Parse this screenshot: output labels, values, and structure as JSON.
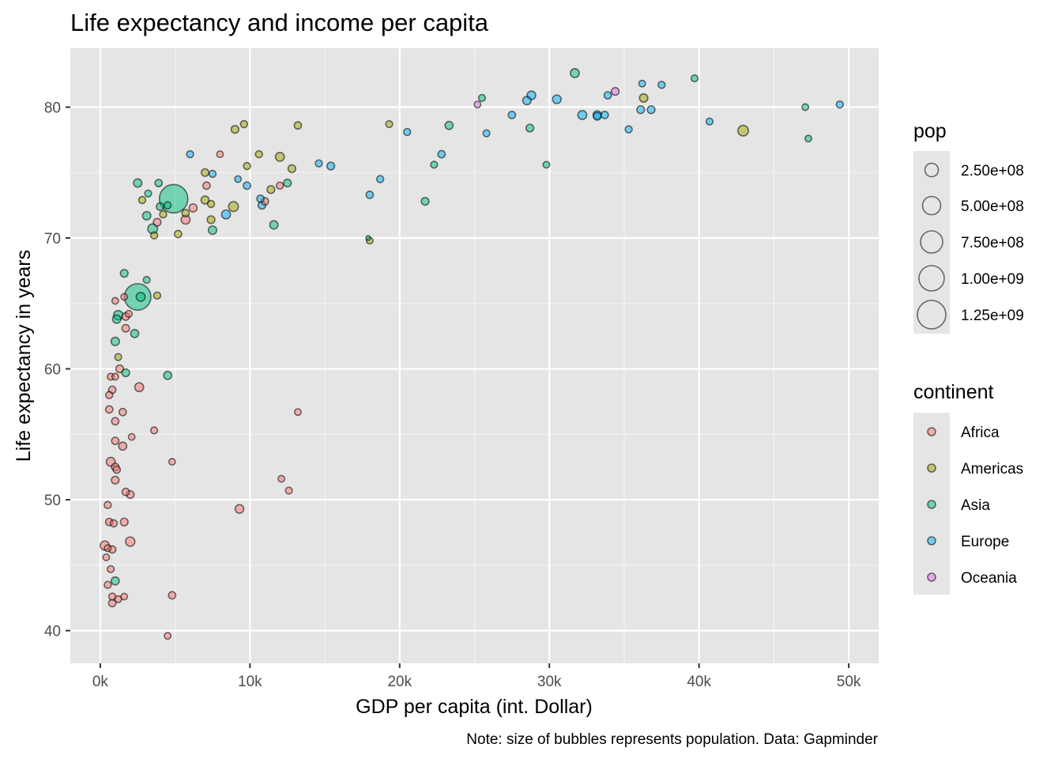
{
  "chart_data": {
    "type": "scatter",
    "title": "Life expectancy and income per capita",
    "xlabel": "GDP per capita (int. Dollar)",
    "ylabel": "Life expectancy in years",
    "caption": "Note: size of bubbles represents population. Data: Gapminder",
    "xlim": [
      -2000,
      52000
    ],
    "ylim": [
      37.5,
      84.5
    ],
    "x_ticks": [
      0,
      10000,
      20000,
      30000,
      40000,
      50000
    ],
    "x_tick_labels": [
      "0k",
      "10k",
      "20k",
      "30k",
      "40k",
      "50k"
    ],
    "y_ticks": [
      40,
      50,
      60,
      70,
      80
    ],
    "y_tick_labels": [
      "40",
      "50",
      "60",
      "70",
      "80"
    ],
    "grid": true,
    "legend_position": "right",
    "size_legend": {
      "title": "pop",
      "values": [
        250000000,
        500000000,
        750000000,
        1000000000,
        1250000000
      ],
      "labels": [
        "2.50e+08",
        "5.00e+08",
        "7.50e+08",
        "1.00e+09",
        "1.25e+09"
      ]
    },
    "color_legend": {
      "title": "continent",
      "entries": [
        {
          "name": "Africa",
          "color": "#F8766D"
        },
        {
          "name": "Americas",
          "color": "#A3A500"
        },
        {
          "name": "Asia",
          "color": "#00BF7D"
        },
        {
          "name": "Europe",
          "color": "#00B0F6"
        },
        {
          "name": "Oceania",
          "color": "#E76BF3"
        }
      ]
    },
    "series": [
      {
        "name": "Africa",
        "points": [
          [
            2600,
            58.6,
            40
          ],
          [
            4800,
            52.9,
            8
          ],
          [
            12100,
            51.6,
            8
          ],
          [
            12600,
            50.7,
            10
          ],
          [
            13200,
            56.7,
            8
          ],
          [
            9300,
            49.3,
            35
          ],
          [
            4800,
            42.7,
            15
          ],
          [
            4500,
            39.6,
            8
          ],
          [
            2000,
            46.8,
            50
          ],
          [
            300,
            46.5,
            45
          ],
          [
            800,
            46.2,
            15
          ],
          [
            500,
            46.3,
            10
          ],
          [
            400,
            45.6,
            8
          ],
          [
            700,
            44.7,
            10
          ],
          [
            500,
            43.5,
            12
          ],
          [
            800,
            42.6,
            12
          ],
          [
            1200,
            42.4,
            10
          ],
          [
            1600,
            42.6,
            8
          ],
          [
            800,
            42.1,
            15
          ],
          [
            600,
            48.3,
            15
          ],
          [
            900,
            48.2,
            12
          ],
          [
            1600,
            48.3,
            20
          ],
          [
            500,
            49.6,
            12
          ],
          [
            1700,
            50.6,
            15
          ],
          [
            2000,
            50.4,
            20
          ],
          [
            1000,
            51.5,
            20
          ],
          [
            1100,
            52.3,
            15
          ],
          [
            1000,
            52.5,
            18
          ],
          [
            700,
            52.9,
            40
          ],
          [
            1500,
            54.1,
            25
          ],
          [
            1000,
            54.5,
            15
          ],
          [
            2100,
            54.8,
            8
          ],
          [
            3600,
            55.3,
            10
          ],
          [
            1000,
            56.0,
            15
          ],
          [
            600,
            56.9,
            15
          ],
          [
            1500,
            56.7,
            15
          ],
          [
            600,
            58.0,
            12
          ],
          [
            800,
            58.4,
            15
          ],
          [
            700,
            59.4,
            10
          ],
          [
            1000,
            59.4,
            8
          ],
          [
            1300,
            60.0,
            20
          ],
          [
            1700,
            63.1,
            18
          ],
          [
            1900,
            64.2,
            10
          ],
          [
            1000,
            65.2,
            8
          ],
          [
            1600,
            65.5,
            8
          ],
          [
            1700,
            64.0,
            18
          ],
          [
            3800,
            71.2,
            20
          ],
          [
            5700,
            71.4,
            40
          ],
          [
            6200,
            72.3,
            25
          ],
          [
            7100,
            74.0,
            15
          ],
          [
            8000,
            76.4,
            8
          ],
          [
            11000,
            72.8,
            15
          ],
          [
            12000,
            74.0,
            12
          ]
        ]
      },
      {
        "name": "Americas",
        "points": [
          [
            9000,
            78.3,
            20
          ],
          [
            9600,
            78.7,
            12
          ],
          [
            13200,
            78.6,
            15
          ],
          [
            10600,
            76.4,
            12
          ],
          [
            12000,
            76.2,
            40
          ],
          [
            9800,
            75.5,
            12
          ],
          [
            12800,
            75.3,
            20
          ],
          [
            7000,
            75.0,
            18
          ],
          [
            11400,
            73.7,
            20
          ],
          [
            7000,
            72.9,
            25
          ],
          [
            7400,
            72.6,
            12
          ],
          [
            8900,
            72.4,
            60
          ],
          [
            5700,
            71.9,
            15
          ],
          [
            7400,
            71.4,
            20
          ],
          [
            5200,
            70.3,
            15
          ],
          [
            3600,
            70.2,
            12
          ],
          [
            2800,
            72.9,
            12
          ],
          [
            4200,
            71.8,
            12
          ],
          [
            3800,
            65.6,
            12
          ],
          [
            1200,
            60.9,
            10
          ],
          [
            18000,
            69.8,
            8
          ],
          [
            19300,
            78.7,
            10
          ],
          [
            36300,
            80.7,
            30
          ],
          [
            42950,
            78.2,
            80
          ]
        ]
      },
      {
        "name": "Asia",
        "points": [
          [
            2500,
            74.2,
            30
          ],
          [
            3900,
            74.2,
            15
          ],
          [
            3200,
            73.4,
            10
          ],
          [
            3100,
            71.7,
            30
          ],
          [
            3500,
            70.7,
            60
          ],
          [
            4000,
            72.4,
            18
          ],
          [
            4500,
            72.5,
            12
          ],
          [
            4900,
            73.0,
            1320
          ],
          [
            7500,
            70.6,
            30
          ],
          [
            11600,
            71.0,
            30
          ],
          [
            12500,
            74.2,
            20
          ],
          [
            3100,
            66.8,
            10
          ],
          [
            1600,
            67.3,
            20
          ],
          [
            2500,
            65.5,
            1110
          ],
          [
            2700,
            65.5,
            40
          ],
          [
            1200,
            64.1,
            50
          ],
          [
            1100,
            63.8,
            30
          ],
          [
            2300,
            62.7,
            25
          ],
          [
            1000,
            62.1,
            30
          ],
          [
            1700,
            59.7,
            20
          ],
          [
            4500,
            59.5,
            25
          ],
          [
            1000,
            43.8,
            25
          ],
          [
            17900,
            70.0,
            0
          ],
          [
            21700,
            72.8,
            20
          ],
          [
            22300,
            75.6,
            10
          ],
          [
            23300,
            78.6,
            25
          ],
          [
            25500,
            80.7,
            10
          ],
          [
            28700,
            78.4,
            20
          ],
          [
            29800,
            75.6,
            8
          ],
          [
            31700,
            82.6,
            40
          ],
          [
            39700,
            82.2,
            10
          ],
          [
            47100,
            80.0,
            8
          ],
          [
            47300,
            77.6,
            8
          ]
        ]
      },
      {
        "name": "Europe",
        "points": [
          [
            6000,
            76.4,
            12
          ],
          [
            7500,
            74.9,
            12
          ],
          [
            9200,
            74.5,
            8
          ],
          [
            9800,
            74.0,
            15
          ],
          [
            10700,
            73.0,
            15
          ],
          [
            10800,
            72.5,
            20
          ],
          [
            8400,
            71.8,
            40
          ],
          [
            14600,
            75.7,
            12
          ],
          [
            15400,
            75.5,
            20
          ],
          [
            18000,
            73.3,
            15
          ],
          [
            18700,
            74.5,
            12
          ],
          [
            20500,
            78.1,
            12
          ],
          [
            22800,
            76.4,
            15
          ],
          [
            25800,
            78.0,
            10
          ],
          [
            27500,
            79.4,
            15
          ],
          [
            28500,
            80.5,
            30
          ],
          [
            28800,
            80.9,
            35
          ],
          [
            30500,
            80.6,
            35
          ],
          [
            32200,
            79.4,
            40
          ],
          [
            33200,
            79.4,
            30
          ],
          [
            33200,
            79.3,
            20
          ],
          [
            33700,
            79.4,
            15
          ],
          [
            33900,
            80.9,
            15
          ],
          [
            35300,
            78.3,
            12
          ],
          [
            36100,
            79.8,
            20
          ],
          [
            36200,
            81.8,
            8
          ],
          [
            36800,
            79.8,
            20
          ],
          [
            37500,
            81.7,
            12
          ],
          [
            40700,
            78.9,
            10
          ],
          [
            49400,
            80.2,
            12
          ]
        ]
      },
      {
        "name": "Oceania",
        "points": [
          [
            25200,
            80.2,
            8
          ],
          [
            34400,
            81.2,
            20
          ]
        ]
      }
    ],
    "point_format": "[gdp_per_capita, life_expectancy, population_millions]"
  }
}
